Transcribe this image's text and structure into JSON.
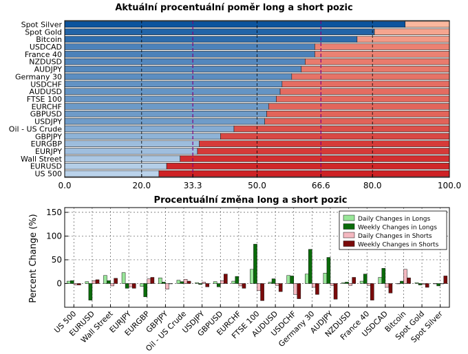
{
  "chart_data": [
    {
      "type": "bar",
      "orientation": "horizontal",
      "stacked": true,
      "title": "Aktuální procentuální poměr long a short pozic",
      "categories": [
        "Spot Silver",
        "Spot Gold",
        "Bitcoin",
        "USDCAD",
        "France 40",
        "NZDUSD",
        "AUDJPY",
        "Germany 30",
        "USDCHF",
        "AUDUSD",
        "FTSE 100",
        "EURCHF",
        "GBPUSD",
        "USDJPY",
        "Oil - US Crude",
        "GBPJPY",
        "EURGBP",
        "EURJPY",
        "Wall Street",
        "EURUSD",
        "US 500"
      ],
      "values": [
        88.5,
        80.5,
        76.0,
        65.0,
        65.0,
        62.5,
        61.5,
        59.0,
        56.5,
        56.0,
        55.0,
        53.0,
        52.5,
        52.0,
        44.0,
        40.5,
        35.0,
        34.5,
        30.0,
        26.5,
        24.5
      ],
      "xlim": [
        0,
        100
      ],
      "xticks": [
        "0.0",
        "20.0",
        "33.3",
        "50.0",
        "66.6",
        "80.0",
        "100.0"
      ],
      "xtick_values": [
        0,
        20,
        33.3,
        50,
        66.6,
        80,
        100
      ],
      "highlight_ticks": [
        "33.3",
        "66.6"
      ],
      "colors": {
        "highlight": "#800080",
        "long_light": "#c6dbef",
        "long_dark": "#08519c",
        "short_light": "#fcbba1",
        "short_dark": "#cb181d",
        "bg": "#ffffff"
      },
      "grid": true
    },
    {
      "type": "bar",
      "title": "Procentuální změna long a short pozic",
      "ylabel": "Percent Change (%)",
      "categories": [
        "US 500",
        "EURUSD",
        "Wall Street",
        "EURJPY",
        "EURGBP",
        "GBPJPY",
        "Oil - US Crude",
        "USDJPY",
        "GBPUSD",
        "EURCHF",
        "FTSE 100",
        "AUDUSD",
        "USDCHF",
        "Germany 30",
        "AUDJPY",
        "NZDUSD",
        "France 40",
        "USDCAD",
        "Bitcoin",
        "Spot Gold",
        "Spot Silver"
      ],
      "ylim": [
        -50,
        160
      ],
      "yticks": [
        "0",
        "50",
        "100",
        "150"
      ],
      "legend_position": "top-right",
      "series": [
        {
          "name": "Daily Changes in Longs",
          "color": "#99e699",
          "values": [
            5,
            4,
            17,
            23,
            -6,
            12,
            7,
            2,
            4,
            5,
            30,
            3,
            17,
            20,
            22,
            2,
            5,
            13,
            0,
            2,
            0
          ]
        },
        {
          "name": "Weekly Changes in Longs",
          "color": "#0a6b0a",
          "values": [
            6,
            -35,
            6,
            -10,
            -28,
            3,
            4,
            -2,
            -7,
            15,
            83,
            10,
            16,
            72,
            55,
            3,
            20,
            32,
            5,
            -3,
            -5
          ]
        },
        {
          "name": "Daily Changes in Shorts",
          "color": "#f4b8c0",
          "values": [
            -3,
            6,
            -5,
            -7,
            10,
            -12,
            9,
            3,
            6,
            -5,
            -15,
            -4,
            -23,
            -8,
            -4,
            -4,
            -4,
            -8,
            30,
            -2,
            0
          ]
        },
        {
          "name": "Weekly Changes in Shorts",
          "color": "#7a0a0a",
          "values": [
            -3,
            8,
            11,
            -10,
            13,
            0,
            5,
            -7,
            20,
            -10,
            -36,
            -17,
            -32,
            -23,
            -33,
            13,
            -35,
            -20,
            12,
            -8,
            16
          ]
        }
      ],
      "grid": true
    }
  ]
}
